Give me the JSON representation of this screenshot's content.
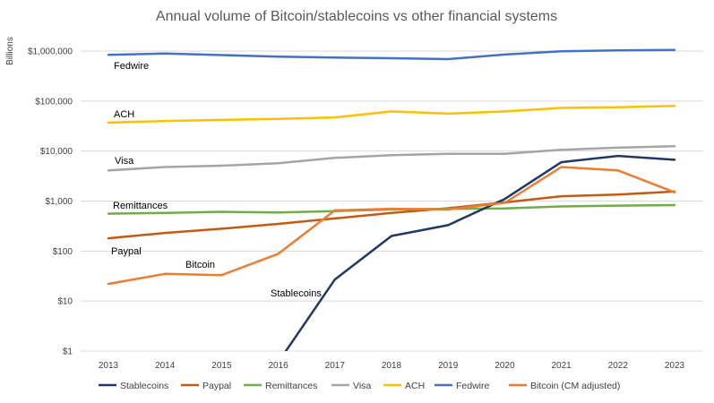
{
  "chart_data": {
    "type": "line",
    "title": "Annual volume of Bitcoin/stablecoins vs other financial systems",
    "ylabel": "Billions",
    "xlabel": "",
    "y_scale": "log",
    "ylim": [
      1,
      1000000
    ],
    "y_ticks": [
      {
        "value": 1,
        "label": "$1"
      },
      {
        "value": 10,
        "label": "$10"
      },
      {
        "value": 100,
        "label": "$100"
      },
      {
        "value": 1000,
        "label": "$1,000"
      },
      {
        "value": 10000,
        "label": "$10,000"
      },
      {
        "value": 100000,
        "label": "$100,000"
      },
      {
        "value": 1000000,
        "label": "$1,000,000"
      }
    ],
    "categories": [
      "2013",
      "2014",
      "2015",
      "2016",
      "2017",
      "2018",
      "2019",
      "2020",
      "2021",
      "2022",
      "2023"
    ],
    "grid": true,
    "legend_position": "bottom",
    "series": [
      {
        "name": "Stablecoins",
        "color": "#203864",
        "values": [
          null,
          null,
          null,
          0.6,
          27,
          200,
          330,
          1100,
          6000,
          8000,
          6700
        ]
      },
      {
        "name": "Paypal",
        "color": "#C55A11",
        "values": [
          180,
          230,
          280,
          350,
          450,
          580,
          720,
          940,
          1250,
          1350,
          1550
        ]
      },
      {
        "name": "Remittances",
        "color": "#70AD47",
        "values": [
          560,
          580,
          610,
          590,
          630,
          680,
          700,
          710,
          780,
          810,
          830
        ]
      },
      {
        "name": "Visa",
        "color": "#A5A5A5",
        "values": [
          4100,
          4800,
          5100,
          5700,
          7300,
          8300,
          8800,
          8800,
          10600,
          11700,
          12500
        ]
      },
      {
        "name": "ACH",
        "color": "#FFC000",
        "values": [
          37000,
          40000,
          42000,
          44000,
          47000,
          62000,
          56000,
          62000,
          73000,
          75000,
          80000
        ]
      },
      {
        "name": "Fedwire",
        "color": "#4472C4",
        "values": [
          840000,
          890000,
          830000,
          770000,
          740000,
          720000,
          690000,
          850000,
          990000,
          1030000,
          1050000
        ]
      },
      {
        "name": "Bitcoin (CM adjusted)",
        "color": "#ED7D31",
        "values": [
          22,
          35,
          33,
          88,
          650,
          700,
          680,
          920,
          4800,
          4100,
          1500
        ]
      }
    ],
    "annotations": [
      {
        "text": "Fedwire",
        "series": "Fedwire"
      },
      {
        "text": "ACH",
        "series": "ACH"
      },
      {
        "text": "Visa",
        "series": "Visa"
      },
      {
        "text": "Remittances",
        "series": "Remittances"
      },
      {
        "text": "Paypal",
        "series": "Paypal"
      },
      {
        "text": "Bitcoin",
        "series": "Bitcoin (CM adjusted)"
      },
      {
        "text": "Stablecoins",
        "series": "Stablecoins"
      }
    ]
  }
}
